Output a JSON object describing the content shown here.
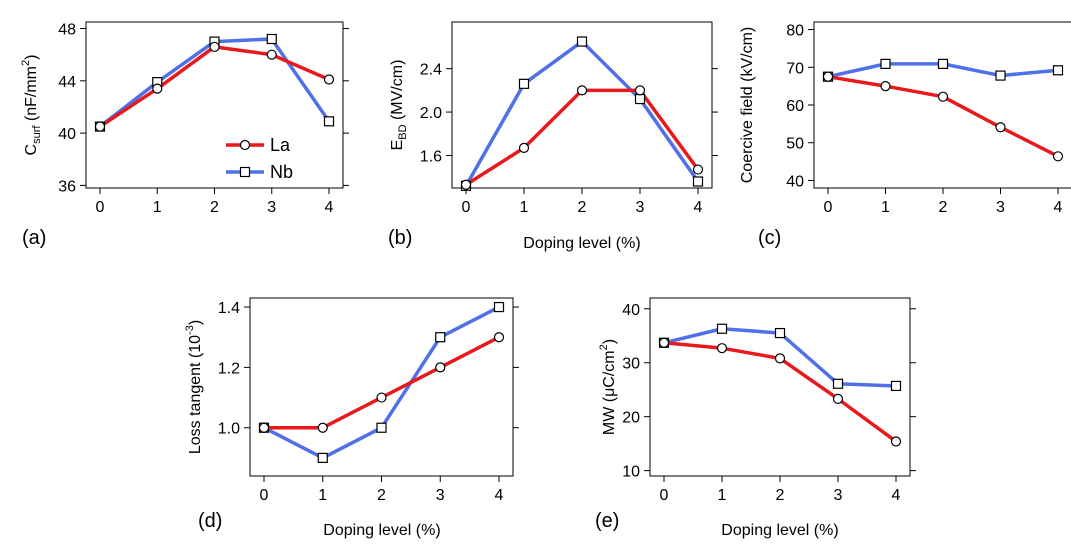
{
  "colors": {
    "La": "#e8191c",
    "Nb": "#4f70e8"
  },
  "legend": {
    "items": [
      {
        "name": "La"
      },
      {
        "name": "Nb"
      }
    ],
    "placement": "inside panel (a), lower right"
  },
  "chart_data": [
    {
      "type": "line",
      "panel_label": "(a)",
      "ylabel_main": "C",
      "ylabel_sub": "surf",
      "ylabel_pre": " (nF/mm",
      "ylabel_sup": "2",
      "ylabel_post": ")",
      "xlabel": "",
      "xlim": [
        0,
        4
      ],
      "ylim": [
        35.8,
        48.5
      ],
      "xticks": [
        0,
        1,
        2,
        3,
        4
      ],
      "yticks": [
        36,
        40,
        44,
        48
      ],
      "x": [
        0,
        1,
        2,
        3,
        4
      ],
      "series": [
        {
          "name": "La",
          "values": [
            40.5,
            43.4,
            46.6,
            46.0,
            44.1
          ]
        },
        {
          "name": "Nb",
          "values": [
            40.5,
            43.9,
            47.0,
            47.2,
            40.9
          ]
        }
      ]
    },
    {
      "type": "line",
      "panel_label": "(b)",
      "ylabel_main": "E",
      "ylabel_sub": "BD",
      "ylabel_pre": " (MV/cm)",
      "ylabel_sup": "",
      "ylabel_post": "",
      "xlabel": "Doping level (%)",
      "xlim": [
        0,
        4
      ],
      "ylim": [
        1.3,
        2.83
      ],
      "xticks": [
        0,
        1,
        2,
        3,
        4
      ],
      "yticks": [
        1.6,
        2.0,
        2.4
      ],
      "ytick_labels": [
        "1.6",
        "2.0",
        "2.4"
      ],
      "x": [
        0,
        1,
        2,
        3,
        4
      ],
      "series": [
        {
          "name": "La",
          "values": [
            1.33,
            1.67,
            2.2,
            2.2,
            1.47
          ]
        },
        {
          "name": "Nb",
          "values": [
            1.32,
            2.26,
            2.65,
            2.12,
            1.36
          ]
        }
      ]
    },
    {
      "type": "line",
      "panel_label": "(c)",
      "ylabel_main": "Coercive field (kV/cm)",
      "ylabel_sub": "",
      "ylabel_pre": "",
      "ylabel_sup": "",
      "ylabel_post": "",
      "xlabel": "",
      "xlim": [
        0,
        4
      ],
      "ylim": [
        38,
        82
      ],
      "xticks": [
        0,
        1,
        2,
        3,
        4
      ],
      "yticks": [
        40,
        50,
        60,
        70,
        80
      ],
      "x": [
        0,
        1,
        2,
        3,
        4
      ],
      "series": [
        {
          "name": "La",
          "values": [
            67.5,
            65.0,
            62.2,
            54.1,
            46.4
          ]
        },
        {
          "name": "Nb",
          "values": [
            67.5,
            70.9,
            70.9,
            67.8,
            69.2
          ]
        }
      ]
    },
    {
      "type": "line",
      "panel_label": "(d)",
      "ylabel_main": "Loss tangent (10",
      "ylabel_sub": "",
      "ylabel_pre": "",
      "ylabel_sup": "-3",
      "ylabel_post": ")",
      "xlabel": "Doping level (%)",
      "xlim": [
        0,
        4
      ],
      "ylim": [
        0.84,
        1.43
      ],
      "xticks": [
        0,
        1,
        2,
        3,
        4
      ],
      "yticks": [
        1.0,
        1.2,
        1.4
      ],
      "ytick_labels": [
        "1.0",
        "1.2",
        "1.4"
      ],
      "x": [
        0,
        1,
        2,
        3,
        4
      ],
      "series": [
        {
          "name": "La",
          "values": [
            1.0,
            1.0,
            1.1,
            1.2,
            1.3
          ]
        },
        {
          "name": "Nb",
          "values": [
            1.0,
            0.9,
            1.0,
            1.3,
            1.4
          ]
        }
      ]
    },
    {
      "type": "line",
      "panel_label": "(e)",
      "ylabel_main": "MW (μC/cm",
      "ylabel_sub": "",
      "ylabel_pre": "",
      "ylabel_sup": "2",
      "ylabel_post": ")",
      "xlabel": "Doping level (%)",
      "xlim": [
        0,
        4
      ],
      "ylim": [
        9,
        42
      ],
      "xticks": [
        0,
        1,
        2,
        3,
        4
      ],
      "yticks": [
        10,
        20,
        30,
        40
      ],
      "x": [
        0,
        1,
        2,
        3,
        4
      ],
      "series": [
        {
          "name": "La",
          "values": [
            33.7,
            32.7,
            30.8,
            23.3,
            15.4
          ]
        },
        {
          "name": "Nb",
          "values": [
            33.7,
            36.3,
            35.5,
            26.1,
            25.7
          ]
        }
      ]
    }
  ]
}
